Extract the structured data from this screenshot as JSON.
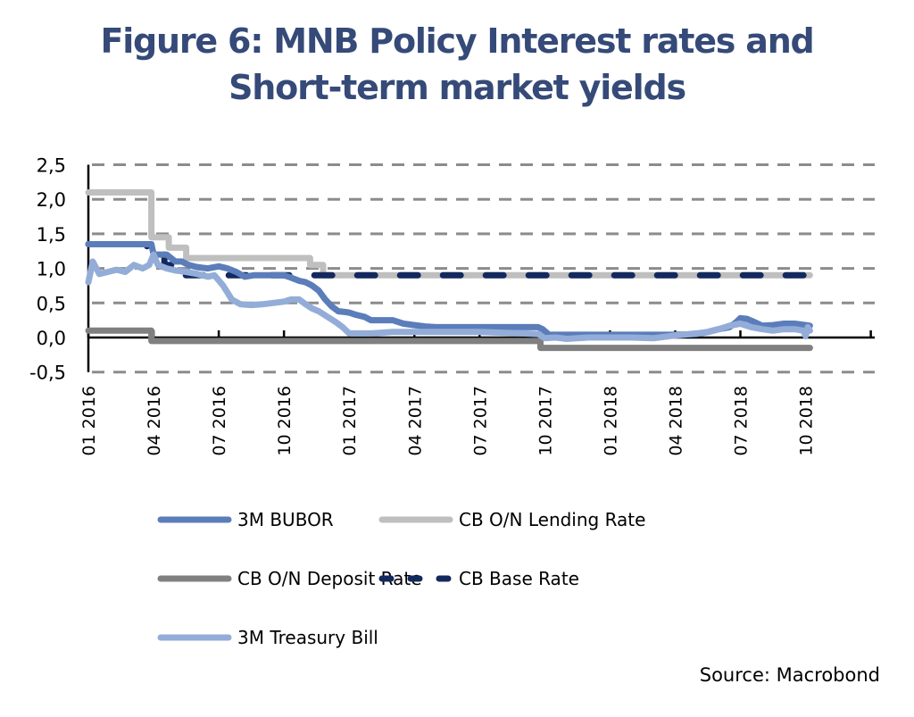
{
  "chart_data": {
    "type": "line",
    "title": "Figure 6: MNB Policy Interest rates and Short-term market yields",
    "title_lines": [
      "Figure 6: MNB Policy Interest rates and",
      "Short-term market yields"
    ],
    "xlabel": "",
    "ylabel": "",
    "ylim": [
      -0.5,
      2.5
    ],
    "yticks": [
      -0.5,
      0.0,
      0.5,
      1.0,
      1.5,
      2.0,
      2.5
    ],
    "ytick_labels": [
      "-0,5",
      "0,0",
      "0,5",
      "1,0",
      "1,5",
      "2,0",
      "2,5"
    ],
    "xlim_months": [
      0,
      36
    ],
    "xtick_labels": [
      "01 2016",
      "04 2016",
      "07 2016",
      "10 2016",
      "01 2017",
      "04 2017",
      "07 2017",
      "10 2017",
      "01 2018",
      "04 2018",
      "07 2018",
      "10 2018"
    ],
    "xtick_months": [
      0,
      3,
      6,
      9,
      12,
      15,
      18,
      21,
      24,
      27,
      30,
      33
    ],
    "grid": "horizontal-dashed",
    "legend_position": "bottom",
    "x_unit_note": "x values are months since Jan 2016",
    "series": [
      {
        "name": "3M BUBOR",
        "color": "#5b7dba",
        "style": "solid",
        "x": [
          0,
          2.9,
          3.0,
          3.3,
          3.6,
          4.0,
          4.3,
          4.6,
          5.0,
          5.5,
          6.0,
          6.4,
          6.8,
          7.2,
          7.6,
          8.0,
          8.5,
          9.0,
          9.3,
          9.7,
          10.0,
          10.3,
          10.6,
          10.9,
          11.2,
          11.5,
          11.8,
          12.0,
          12.3,
          12.7,
          13.0,
          13.5,
          14.0,
          14.5,
          15.0,
          15.5,
          16.0,
          17.0,
          18.0,
          19.0,
          20.0,
          20.7,
          20.9,
          21.2,
          22.0,
          23.0,
          24.0,
          25.0,
          26.0,
          27.0,
          28.0,
          28.5,
          29.0,
          29.5,
          29.8,
          30.0,
          30.3,
          30.6,
          31.0,
          31.5,
          32.0,
          32.5,
          33.0,
          33.2
        ],
        "values": [
          1.35,
          1.35,
          1.2,
          1.2,
          1.2,
          1.1,
          1.1,
          1.05,
          1.02,
          1.0,
          1.03,
          1.0,
          0.95,
          0.88,
          0.9,
          0.9,
          0.9,
          0.9,
          0.87,
          0.82,
          0.8,
          0.75,
          0.68,
          0.55,
          0.45,
          0.38,
          0.37,
          0.36,
          0.33,
          0.3,
          0.25,
          0.25,
          0.25,
          0.2,
          0.18,
          0.16,
          0.15,
          0.15,
          0.15,
          0.15,
          0.15,
          0.15,
          0.12,
          0.04,
          0.04,
          0.04,
          0.04,
          0.04,
          0.04,
          0.04,
          0.05,
          0.08,
          0.12,
          0.15,
          0.22,
          0.28,
          0.27,
          0.23,
          0.17,
          0.18,
          0.2,
          0.2,
          0.18,
          0.17
        ]
      },
      {
        "name": "CB O/N Lending Rate",
        "color": "#bfbfbf",
        "style": "solid",
        "x": [
          0,
          2.9,
          2.9,
          3.7,
          3.7,
          4.5,
          4.5,
          10.2,
          10.2,
          10.8,
          10.8,
          33.2
        ],
        "values": [
          2.1,
          2.1,
          1.45,
          1.45,
          1.3,
          1.3,
          1.15,
          1.15,
          1.05,
          1.05,
          0.9,
          0.9
        ]
      },
      {
        "name": "CB O/N Deposit Rate",
        "color": "#808080",
        "style": "solid",
        "x": [
          0,
          2.9,
          2.9,
          20.8,
          20.8,
          33.2
        ],
        "values": [
          0.1,
          0.1,
          -0.05,
          -0.05,
          -0.15,
          -0.15
        ]
      },
      {
        "name": "CB Base Rate",
        "color": "#13295e",
        "style": "dashed",
        "x": [
          0,
          2.7,
          2.7,
          3.5,
          3.5,
          4.3,
          4.3,
          5.0,
          5.0,
          33.2
        ],
        "values": [
          1.35,
          1.35,
          1.2,
          1.2,
          1.05,
          1.05,
          0.9,
          0.9,
          0.9,
          0.9
        ]
      },
      {
        "name": "3M Treasury Bill",
        "color": "#93add8",
        "style": "solid",
        "x": [
          0,
          0.2,
          0.5,
          0.9,
          1.3,
          1.7,
          2.1,
          2.5,
          2.8,
          3.0,
          3.2,
          3.6,
          4.0,
          4.5,
          5.0,
          5.5,
          5.8,
          6.2,
          6.6,
          7.0,
          7.5,
          8.0,
          8.5,
          9.0,
          9.3,
          9.7,
          10.0,
          10.3,
          10.6,
          11.0,
          11.4,
          11.7,
          12.0,
          12.5,
          13.0,
          13.5,
          14.0,
          15.0,
          16.0,
          17.0,
          18.0,
          19.0,
          20.0,
          20.7,
          21.0,
          21.5,
          22.0,
          23.0,
          24.0,
          25.0,
          26.0,
          27.0,
          28.0,
          28.5,
          29.0,
          29.5,
          30.0,
          30.5,
          31.0,
          31.5,
          32.0,
          32.5,
          32.9,
          33.0,
          33.1,
          33.2
        ],
        "values": [
          0.8,
          1.1,
          0.92,
          0.95,
          0.98,
          0.95,
          1.05,
          1.0,
          1.05,
          1.2,
          1.05,
          1.0,
          0.97,
          0.95,
          0.92,
          0.88,
          0.9,
          0.75,
          0.55,
          0.48,
          0.47,
          0.48,
          0.5,
          0.52,
          0.55,
          0.55,
          0.48,
          0.42,
          0.38,
          0.3,
          0.22,
          0.15,
          0.06,
          0.06,
          0.06,
          0.07,
          0.08,
          0.08,
          0.08,
          0.08,
          0.08,
          0.07,
          0.06,
          0.05,
          -0.01,
          0.0,
          -0.02,
          0.0,
          0.0,
          0.0,
          -0.01,
          0.03,
          0.06,
          0.08,
          0.12,
          0.17,
          0.2,
          0.15,
          0.12,
          0.1,
          0.12,
          0.12,
          0.1,
          0.02,
          0.15,
          0.1
        ]
      }
    ]
  },
  "source": "Source: Macrobond"
}
